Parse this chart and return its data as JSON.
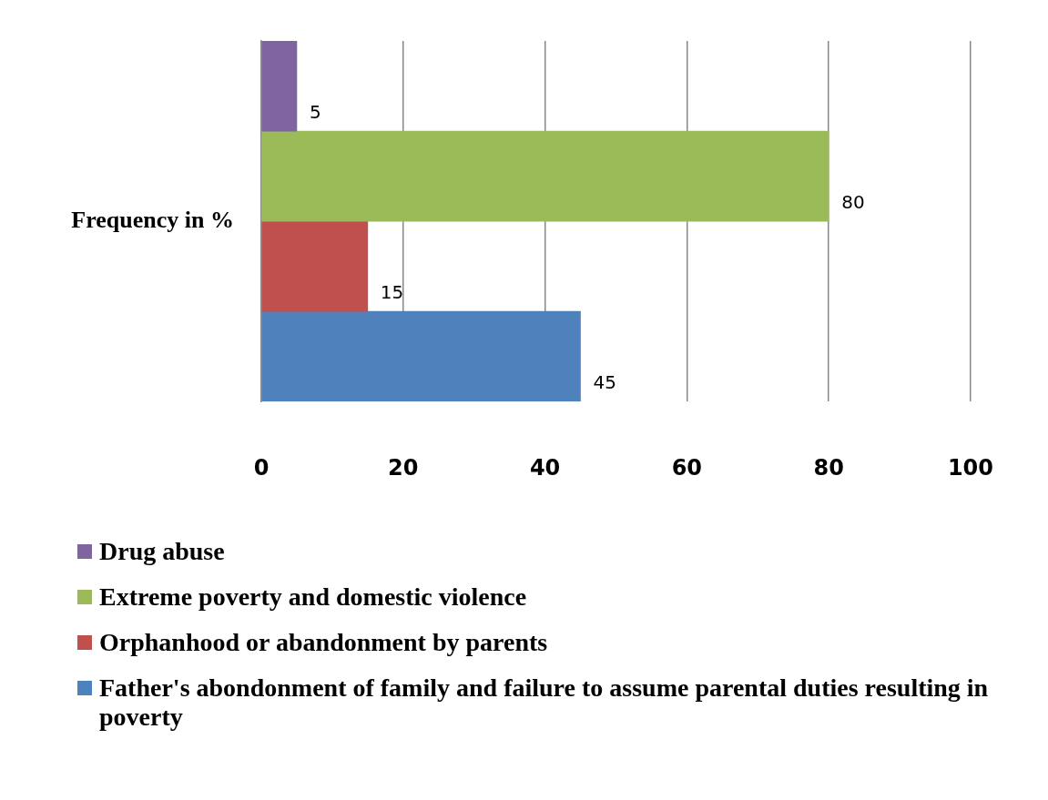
{
  "chart_data": {
    "type": "bar",
    "orientation": "horizontal",
    "ylabel": "Frequency in %",
    "categories": [
      null,
      null,
      null,
      null
    ],
    "series": [
      {
        "name": "Drug abuse",
        "color": "#8064a2",
        "values": [
          5,
          null,
          null,
          null
        ]
      },
      {
        "name": "Extreme poverty and domestic violence",
        "color": "#9bbb59",
        "values": [
          null,
          80,
          null,
          null
        ]
      },
      {
        "name": "Orphanhood or abandonment by parents",
        "color": "#c0504d",
        "values": [
          null,
          null,
          15,
          null
        ]
      },
      {
        "name": "Father's abondonment of family and failure to assume parental duties resulting in poverty",
        "color": "#4f81bd",
        "values": [
          null,
          null,
          null,
          45
        ]
      }
    ],
    "xlim": [
      0,
      100
    ],
    "xticks": [
      0,
      20,
      40,
      60,
      80,
      100
    ],
    "grid": "x",
    "legend": "bottom",
    "data_labels": true
  }
}
